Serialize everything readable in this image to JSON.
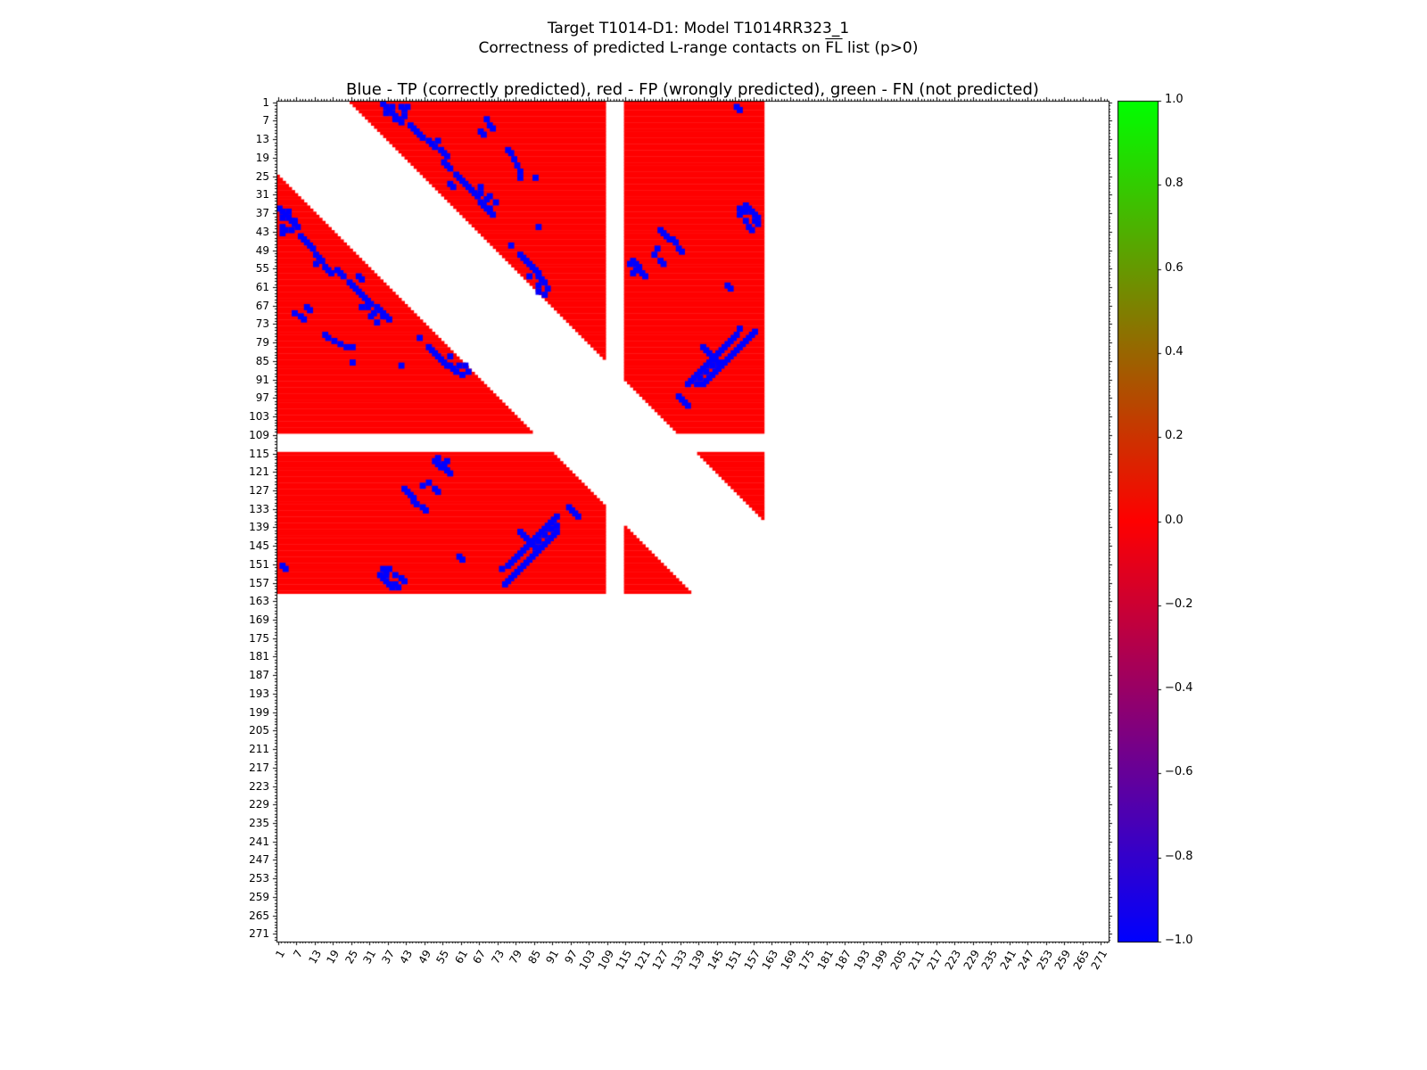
{
  "chart_data": {
    "type": "heatmap",
    "title_line1": "Target T1014-D1: Model T1014RR323_1",
    "title_line2_prefix": "Correctness of predicted L-range contacts on ",
    "title_line2_overline": "FL",
    "title_line2_suffix": " list (p>0)",
    "axes_title": "Blue - TP (correctly predicted), red - FP (wrongly predicted), green - FN (not predicted)",
    "legend": {
      "TP": "blue = correctly predicted",
      "FP": "red = wrongly predicted",
      "FN": "green = not predicted"
    },
    "n_residues": 273,
    "x_tick_labels": [
      "1",
      "7",
      "13",
      "19",
      "25",
      "31",
      "37",
      "43",
      "49",
      "55",
      "61",
      "67",
      "73",
      "79",
      "85",
      "91",
      "97",
      "103",
      "109",
      "115",
      "121",
      "127",
      "133",
      "139",
      "145",
      "151",
      "157",
      "163",
      "169",
      "175",
      "181",
      "187",
      "193",
      "199",
      "205",
      "211",
      "217",
      "223",
      "229",
      "235",
      "241",
      "247",
      "253",
      "259",
      "265",
      "271"
    ],
    "y_tick_labels": [
      "1",
      "7",
      "13",
      "19",
      "25",
      "31",
      "37",
      "43",
      "49",
      "55",
      "61",
      "67",
      "73",
      "79",
      "85",
      "91",
      "97",
      "103",
      "109",
      "115",
      "121",
      "127",
      "133",
      "139",
      "145",
      "151",
      "157",
      "163",
      "169",
      "175",
      "181",
      "187",
      "193",
      "199",
      "205",
      "211",
      "217",
      "223",
      "229",
      "235",
      "241",
      "247",
      "253",
      "259",
      "265",
      "271"
    ],
    "tick_step": 6,
    "colors": {
      "tp": "#0000ff",
      "fp": "#ff0000",
      "fn": "#00ff00",
      "background": "#ffffff",
      "frame": "#000000"
    },
    "colorbar": {
      "min": -1.0,
      "max": 1.0,
      "tick_labels": [
        "1.0",
        "0.8",
        "0.6",
        "0.4",
        "0.2",
        "0.0",
        "−0.2",
        "−0.4",
        "−0.6",
        "−0.8",
        "−1.0"
      ],
      "gradient_stops": [
        [
          "#00ff00",
          1.0
        ],
        [
          "#ff0000",
          0.0
        ],
        [
          "#0000ff",
          -1.0
        ]
      ]
    },
    "heatmap": {
      "predicted_domains": [
        [
          1,
          108
        ],
        [
          115,
          160
        ]
      ],
      "min_sequence_separation": 24,
      "fp_rule": "cells (i,j) with both residues inside predicted_domains and |i-j| >= min_sequence_separation are red (FP) unless listed in tp_contacts (blue)",
      "tp_contacts": [
        [
          1,
          35
        ],
        [
          2,
          36
        ],
        [
          2,
          38
        ],
        [
          3,
          37
        ],
        [
          4,
          36
        ],
        [
          4,
          38
        ],
        [
          5,
          39
        ],
        [
          5,
          42
        ],
        [
          6,
          39
        ],
        [
          6,
          40
        ],
        [
          7,
          41
        ],
        [
          8,
          44
        ],
        [
          9,
          45
        ],
        [
          10,
          46
        ],
        [
          11,
          47
        ],
        [
          12,
          48
        ],
        [
          13,
          50
        ],
        [
          14,
          51
        ],
        [
          15,
          52
        ],
        [
          13,
          53
        ],
        [
          16,
          54
        ],
        [
          17,
          55
        ],
        [
          18,
          56
        ],
        [
          20,
          55
        ],
        [
          21,
          56
        ],
        [
          22,
          57
        ],
        [
          24,
          59
        ],
        [
          25,
          60
        ],
        [
          26,
          61
        ],
        [
          27,
          62
        ],
        [
          28,
          63
        ],
        [
          29,
          64
        ],
        [
          30,
          65
        ],
        [
          31,
          66
        ],
        [
          33,
          67
        ],
        [
          34,
          68
        ],
        [
          35,
          69
        ],
        [
          36,
          70
        ],
        [
          37,
          71
        ],
        [
          27,
          57
        ],
        [
          28,
          58
        ],
        [
          30,
          67
        ],
        [
          32,
          69
        ],
        [
          33,
          72
        ],
        [
          35,
          70
        ],
        [
          28,
          67
        ],
        [
          31,
          70
        ],
        [
          2,
          41
        ],
        [
          3,
          42
        ],
        [
          2,
          43
        ],
        [
          6,
          69
        ],
        [
          8,
          70
        ],
        [
          9,
          71
        ],
        [
          10,
          67
        ],
        [
          11,
          68
        ],
        [
          16,
          76
        ],
        [
          17,
          77
        ],
        [
          19,
          78
        ],
        [
          21,
          79
        ],
        [
          23,
          80
        ],
        [
          25,
          80
        ],
        [
          47,
          77
        ],
        [
          50,
          80
        ],
        [
          51,
          81
        ],
        [
          52,
          82
        ],
        [
          53,
          83
        ],
        [
          54,
          84
        ],
        [
          55,
          85
        ],
        [
          56,
          86
        ],
        [
          57,
          86
        ],
        [
          58,
          87
        ],
        [
          59,
          88
        ],
        [
          60,
          86
        ],
        [
          61,
          89
        ],
        [
          62,
          86
        ],
        [
          63,
          88
        ],
        [
          57,
          83
        ],
        [
          41,
          86
        ],
        [
          25,
          85
        ],
        [
          3,
          152
        ],
        [
          35,
          152
        ],
        [
          36,
          153
        ],
        [
          37,
          152
        ],
        [
          39,
          154
        ],
        [
          41,
          155
        ],
        [
          42,
          156
        ],
        [
          45,
          130
        ],
        [
          46,
          131
        ],
        [
          50,
          124
        ],
        [
          52,
          126
        ],
        [
          53,
          127
        ],
        [
          52,
          117
        ],
        [
          53,
          118
        ],
        [
          54,
          119
        ],
        [
          55,
          119
        ],
        [
          56,
          120
        ],
        [
          57,
          121
        ],
        [
          56,
          117
        ],
        [
          60,
          148
        ],
        [
          61,
          149
        ],
        [
          48,
          125
        ],
        [
          75,
          157
        ],
        [
          76,
          156
        ],
        [
          77,
          155
        ],
        [
          78,
          154
        ],
        [
          79,
          153
        ],
        [
          80,
          152
        ],
        [
          81,
          151
        ],
        [
          82,
          150
        ],
        [
          83,
          149
        ],
        [
          84,
          148
        ],
        [
          85,
          147
        ],
        [
          86,
          146
        ],
        [
          87,
          145
        ],
        [
          88,
          144
        ],
        [
          89,
          143
        ],
        [
          90,
          142
        ],
        [
          91,
          141
        ],
        [
          92,
          140
        ],
        [
          90,
          139
        ],
        [
          88,
          141
        ],
        [
          86,
          143
        ],
        [
          92,
          138
        ],
        [
          2,
          151
        ],
        [
          42,
          126
        ],
        [
          43,
          127
        ],
        [
          44,
          128
        ],
        [
          45,
          129
        ],
        [
          48,
          132
        ],
        [
          49,
          133
        ],
        [
          53,
          116
        ],
        [
          55,
          118
        ],
        [
          34,
          154
        ],
        [
          35,
          155
        ],
        [
          36,
          156
        ],
        [
          37,
          157
        ],
        [
          38,
          158
        ],
        [
          36,
          154
        ],
        [
          40,
          158
        ],
        [
          39,
          157
        ],
        [
          74,
          152
        ],
        [
          76,
          151
        ],
        [
          78,
          149
        ],
        [
          80,
          147
        ],
        [
          82,
          145
        ],
        [
          84,
          143
        ],
        [
          86,
          141
        ],
        [
          88,
          139
        ],
        [
          90,
          137
        ],
        [
          92,
          135
        ],
        [
          91,
          136
        ],
        [
          89,
          138
        ],
        [
          87,
          140
        ],
        [
          85,
          142
        ],
        [
          83,
          144
        ],
        [
          81,
          146
        ],
        [
          79,
          148
        ],
        [
          77,
          150
        ],
        [
          96,
          132
        ],
        [
          97,
          133
        ],
        [
          98,
          134
        ],
        [
          99,
          135
        ],
        [
          80,
          140
        ],
        [
          81,
          141
        ],
        [
          82,
          142
        ],
        [
          83,
          143
        ],
        [
          84,
          144
        ],
        [
          85,
          145
        ]
      ]
    }
  }
}
